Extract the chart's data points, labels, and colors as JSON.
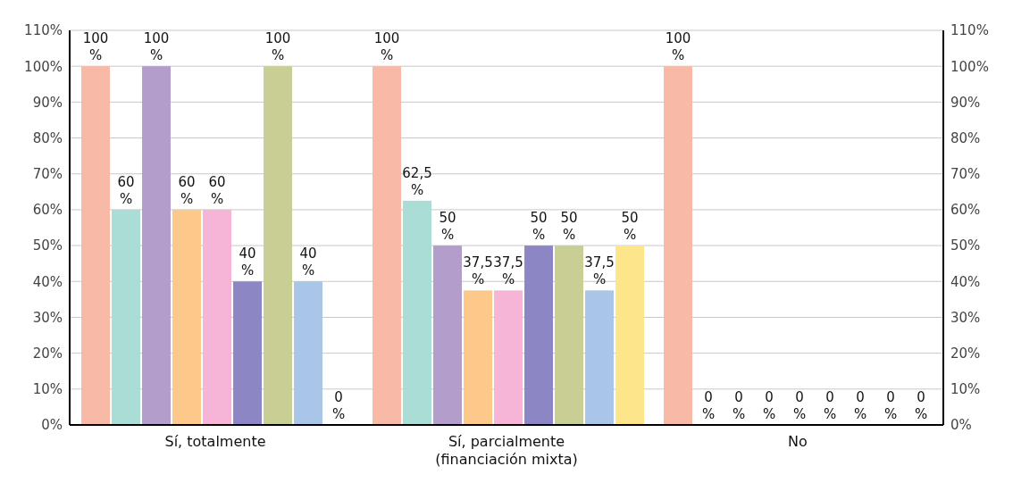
{
  "chart_data": {
    "type": "bar",
    "categories": [
      "Sí, totalmente",
      "Sí, parcialmente (financiación mixta)",
      "No"
    ],
    "series": [
      {
        "color": "#f8b9a6",
        "values": [
          100,
          100,
          100
        ],
        "value_labels": [
          "100 %",
          "100 %",
          "100 %"
        ]
      },
      {
        "color": "#a9ddd6",
        "values": [
          60,
          62.5,
          0
        ],
        "value_labels": [
          "60 %",
          "62,5 %",
          "0 %"
        ]
      },
      {
        "color": "#b39dcb",
        "values": [
          100,
          50,
          0
        ],
        "value_labels": [
          "100 %",
          "50 %",
          "0 %"
        ]
      },
      {
        "color": "#fdc98a",
        "values": [
          60,
          37.5,
          0
        ],
        "value_labels": [
          "60 %",
          "37,5 %",
          "0 %"
        ]
      },
      {
        "color": "#f6b5d6",
        "values": [
          60,
          37.5,
          0
        ],
        "value_labels": [
          "60 %",
          "37,5 %",
          "0 %"
        ]
      },
      {
        "color": "#8d86c4",
        "values": [
          40,
          50,
          0
        ],
        "value_labels": [
          "40 %",
          "50 %",
          "0 %"
        ]
      },
      {
        "color": "#c9cf94",
        "values": [
          100,
          50,
          0
        ],
        "value_labels": [
          "100 %",
          "50 %",
          "0 %"
        ]
      },
      {
        "color": "#a9c5e8",
        "values": [
          40,
          37.5,
          0
        ],
        "value_labels": [
          "40 %",
          "37,5 %",
          "0 %"
        ]
      },
      {
        "color": "#fde58a",
        "values": [
          0,
          50,
          0
        ],
        "value_labels": [
          "0 %",
          "50 %",
          "0 %"
        ]
      }
    ],
    "ylim": [
      0,
      110
    ],
    "yticks": [
      {
        "value": 0,
        "label": "0%"
      },
      {
        "value": 10,
        "label": "10%"
      },
      {
        "value": 20,
        "label": "20%"
      },
      {
        "value": 30,
        "label": "30%"
      },
      {
        "value": 40,
        "label": "40%"
      },
      {
        "value": 50,
        "label": "50%"
      },
      {
        "value": 60,
        "label": "60%"
      },
      {
        "value": 70,
        "label": "70%"
      },
      {
        "value": 80,
        "label": "80%"
      },
      {
        "value": 90,
        "label": "90%"
      },
      {
        "value": 100,
        "label": "100%"
      },
      {
        "value": 110,
        "label": "110%"
      }
    ],
    "y2lim": [
      0,
      110
    ],
    "y2ticks": [
      {
        "value": 0,
        "label": "0%"
      },
      {
        "value": 10,
        "label": "10%"
      },
      {
        "value": 20,
        "label": "20%"
      },
      {
        "value": 30,
        "label": "30%"
      },
      {
        "value": 40,
        "label": "40%"
      },
      {
        "value": 50,
        "label": "50%"
      },
      {
        "value": 60,
        "label": "60%"
      },
      {
        "value": 70,
        "label": "70%"
      },
      {
        "value": 80,
        "label": "80%"
      },
      {
        "value": 90,
        "label": "90%"
      },
      {
        "value": 100,
        "label": "100%"
      },
      {
        "value": 110,
        "label": "110%"
      }
    ],
    "grid": "y",
    "legend": false
  }
}
